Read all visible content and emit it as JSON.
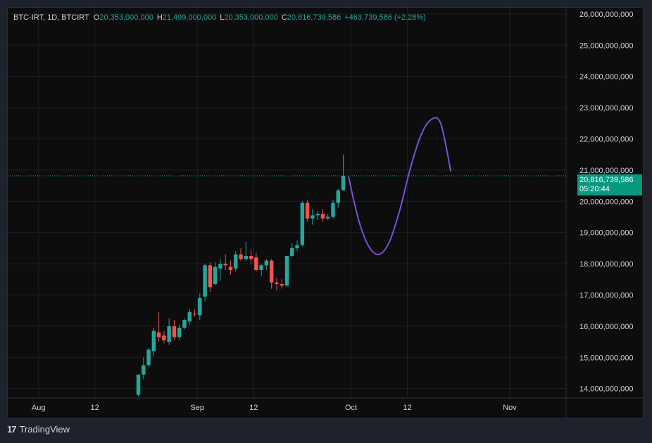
{
  "legend": {
    "symbol": "BTC-IRT, 1D, BTCIRT",
    "o_label": "O",
    "o_value": "20,353,000,000",
    "h_label": "H",
    "h_value": "21,499,000,000",
    "l_label": "L",
    "l_value": "20,353,000,000",
    "c_label": "C",
    "c_value": "20,816,739,586",
    "change": "+463,739,586 (+2.28%)"
  },
  "price_label": {
    "price": "20,816,739,586",
    "countdown": "05:20:44"
  },
  "footer": {
    "logo": "17",
    "brand": "TradingView"
  },
  "colors": {
    "up": "#26a69a",
    "down": "#ef5350",
    "projection": "#7b4fd6",
    "background": "#0d0d0d"
  },
  "chart_data": {
    "type": "candlestick",
    "ylim": [
      13700000000,
      26200000000
    ],
    "yticks": [
      14000000000,
      15000000000,
      16000000000,
      17000000000,
      18000000000,
      19000000000,
      20000000000,
      21000000000,
      22000000000,
      23000000000,
      24000000000,
      25000000000,
      26000000000
    ],
    "ytick_labels": [
      "14,000,000,000",
      "15,000,000,000",
      "16,000,000,000",
      "17,000,000,000",
      "18,000,000,000",
      "19,000,000,000",
      "20,000,000,000",
      "21,000,000,000",
      "22,000,000,000",
      "23,000,000,000",
      "24,000,000,000",
      "25,000,000,000",
      "26,000,000,000"
    ],
    "xlim": [
      "2024-07-26",
      "2024-11-12"
    ],
    "xticks": [
      {
        "date": "2024-08-01",
        "label": "Aug"
      },
      {
        "date": "2024-08-12",
        "label": "12"
      },
      {
        "date": "2024-09-01",
        "label": "Sep"
      },
      {
        "date": "2024-09-12",
        "label": "12"
      },
      {
        "date": "2024-10-01",
        "label": "Oct"
      },
      {
        "date": "2024-10-12",
        "label": "12"
      },
      {
        "date": "2024-11-01",
        "label": "Nov"
      }
    ],
    "last_price": 20816739586,
    "candles": [
      {
        "date": "2024-08-20",
        "o": 13800000000,
        "h": 14450000000,
        "l": 13750000000,
        "c": 14450000000
      },
      {
        "date": "2024-08-21",
        "o": 14450000000,
        "h": 15000000000,
        "l": 14300000000,
        "c": 14750000000
      },
      {
        "date": "2024-08-22",
        "o": 14750000000,
        "h": 15300000000,
        "l": 14700000000,
        "c": 15250000000
      },
      {
        "date": "2024-08-23",
        "o": 15200000000,
        "h": 15950000000,
        "l": 15050000000,
        "c": 15850000000
      },
      {
        "date": "2024-08-24",
        "o": 15800000000,
        "h": 16450000000,
        "l": 15500000000,
        "c": 15650000000
      },
      {
        "date": "2024-08-25",
        "o": 15700000000,
        "h": 15850000000,
        "l": 15450000000,
        "c": 15550000000
      },
      {
        "date": "2024-08-26",
        "o": 15500000000,
        "h": 16250000000,
        "l": 15400000000,
        "c": 16000000000
      },
      {
        "date": "2024-08-27",
        "o": 16000000000,
        "h": 16200000000,
        "l": 15550000000,
        "c": 15650000000
      },
      {
        "date": "2024-08-28",
        "o": 15650000000,
        "h": 16050000000,
        "l": 15550000000,
        "c": 15950000000
      },
      {
        "date": "2024-08-29",
        "o": 15950000000,
        "h": 16250000000,
        "l": 15900000000,
        "c": 16200000000
      },
      {
        "date": "2024-08-30",
        "o": 16150000000,
        "h": 16550000000,
        "l": 16050000000,
        "c": 16450000000
      },
      {
        "date": "2024-08-31",
        "o": 16400000000,
        "h": 16550000000,
        "l": 16300000000,
        "c": 16380000000
      },
      {
        "date": "2024-09-01",
        "o": 16350000000,
        "h": 17050000000,
        "l": 16200000000,
        "c": 16900000000
      },
      {
        "date": "2024-09-02",
        "o": 16950000000,
        "h": 18000000000,
        "l": 16800000000,
        "c": 17950000000
      },
      {
        "date": "2024-09-03",
        "o": 17950000000,
        "h": 18050000000,
        "l": 17100000000,
        "c": 17250000000
      },
      {
        "date": "2024-09-04",
        "o": 17350000000,
        "h": 18050000000,
        "l": 17300000000,
        "c": 17900000000
      },
      {
        "date": "2024-09-05",
        "o": 17850000000,
        "h": 18150000000,
        "l": 17450000000,
        "c": 18000000000
      },
      {
        "date": "2024-09-06",
        "o": 18000000000,
        "h": 18300000000,
        "l": 17800000000,
        "c": 17950000000
      },
      {
        "date": "2024-09-07",
        "o": 17900000000,
        "h": 18100000000,
        "l": 17650000000,
        "c": 17800000000
      },
      {
        "date": "2024-09-08",
        "o": 17850000000,
        "h": 18400000000,
        "l": 17750000000,
        "c": 18300000000
      },
      {
        "date": "2024-09-09",
        "o": 18300000000,
        "h": 18500000000,
        "l": 18100000000,
        "c": 18150000000
      },
      {
        "date": "2024-09-10",
        "o": 18150000000,
        "h": 18700000000,
        "l": 18100000000,
        "c": 18250000000
      },
      {
        "date": "2024-09-11",
        "o": 18250000000,
        "h": 18450000000,
        "l": 18000000000,
        "c": 18150000000
      },
      {
        "date": "2024-09-12",
        "o": 18200000000,
        "h": 18350000000,
        "l": 17750000000,
        "c": 17800000000
      },
      {
        "date": "2024-09-13",
        "o": 17800000000,
        "h": 18000000000,
        "l": 17600000000,
        "c": 17950000000
      },
      {
        "date": "2024-09-14",
        "o": 17950000000,
        "h": 18150000000,
        "l": 17800000000,
        "c": 18100000000
      },
      {
        "date": "2024-09-15",
        "o": 18100000000,
        "h": 18150000000,
        "l": 17200000000,
        "c": 17400000000
      },
      {
        "date": "2024-09-16",
        "o": 17400000000,
        "h": 17550000000,
        "l": 17150000000,
        "c": 17350000000
      },
      {
        "date": "2024-09-17",
        "o": 17350000000,
        "h": 17500000000,
        "l": 17200000000,
        "c": 17300000000
      },
      {
        "date": "2024-09-18",
        "o": 17300000000,
        "h": 18250000000,
        "l": 17250000000,
        "c": 18250000000
      },
      {
        "date": "2024-09-19",
        "o": 18250000000,
        "h": 18650000000,
        "l": 18200000000,
        "c": 18500000000
      },
      {
        "date": "2024-09-20",
        "o": 18500000000,
        "h": 18750000000,
        "l": 18400000000,
        "c": 18600000000
      },
      {
        "date": "2024-09-21",
        "o": 18600000000,
        "h": 20000000000,
        "l": 18550000000,
        "c": 19950000000
      },
      {
        "date": "2024-09-22",
        "o": 19950000000,
        "h": 20050000000,
        "l": 19350000000,
        "c": 19450000000
      },
      {
        "date": "2024-09-23",
        "o": 19450000000,
        "h": 19750000000,
        "l": 19250000000,
        "c": 19550000000
      },
      {
        "date": "2024-09-24",
        "o": 19550000000,
        "h": 19700000000,
        "l": 19400000000,
        "c": 19600000000
      },
      {
        "date": "2024-09-25",
        "o": 19600000000,
        "h": 19750000000,
        "l": 19350000000,
        "c": 19450000000
      },
      {
        "date": "2024-09-26",
        "o": 19450000000,
        "h": 19600000000,
        "l": 19400000000,
        "c": 19500000000
      },
      {
        "date": "2024-09-27",
        "o": 19500000000,
        "h": 20050000000,
        "l": 19450000000,
        "c": 19950000000
      },
      {
        "date": "2024-09-28",
        "o": 19950000000,
        "h": 20400000000,
        "l": 19800000000,
        "c": 20350000000
      },
      {
        "date": "2024-09-29",
        "o": 20353000000,
        "h": 21499000000,
        "l": 20353000000,
        "c": 20816739586
      }
    ],
    "projection_path": [
      {
        "date": "2024-09-30",
        "v": 20800000000
      },
      {
        "date": "2024-10-02",
        "v": 19400000000
      },
      {
        "date": "2024-10-04",
        "v": 18550000000
      },
      {
        "date": "2024-10-06",
        "v": 18300000000
      },
      {
        "date": "2024-10-08",
        "v": 18700000000
      },
      {
        "date": "2024-10-10",
        "v": 19700000000
      },
      {
        "date": "2024-10-12",
        "v": 21000000000
      },
      {
        "date": "2024-10-14",
        "v": 22050000000
      },
      {
        "date": "2024-10-16",
        "v": 22600000000
      },
      {
        "date": "2024-10-18",
        "v": 22500000000
      },
      {
        "date": "2024-10-20",
        "v": 20950000000
      }
    ]
  }
}
